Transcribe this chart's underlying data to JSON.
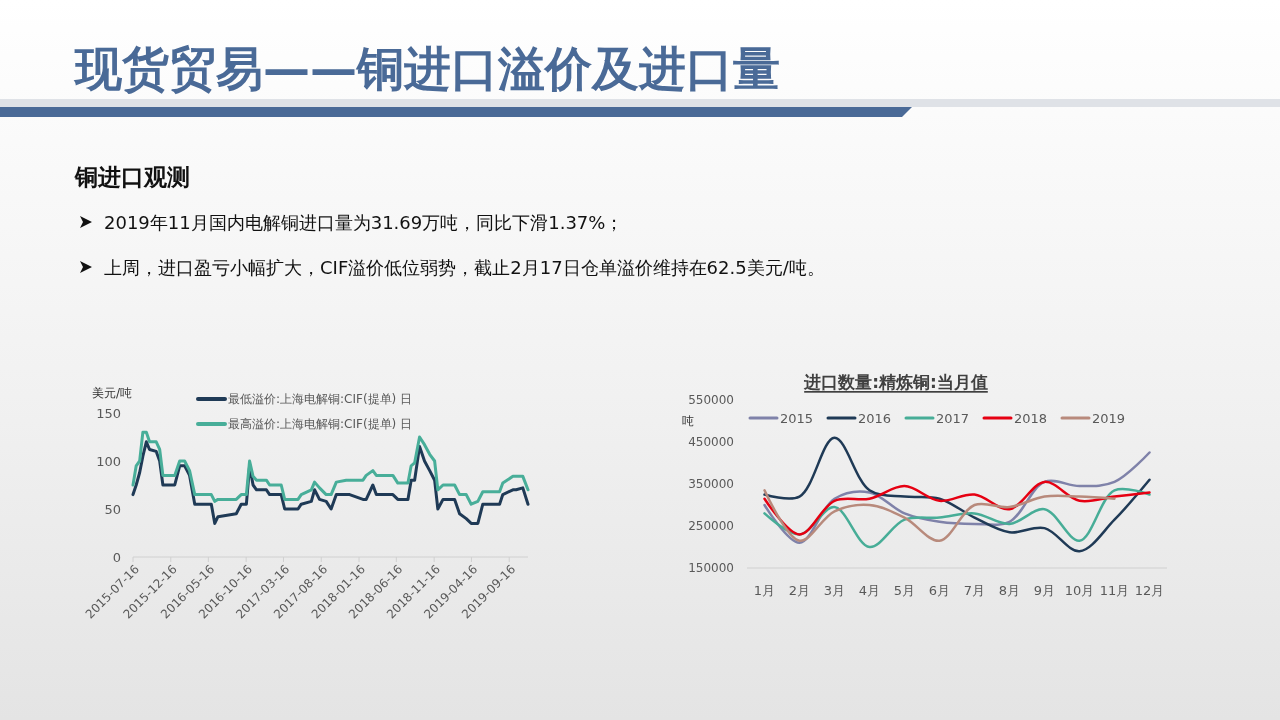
{
  "chart_data": [
    {
      "type": "other",
      "title": "现货贸易——铜进口溢价及进口量",
      "subtitle": "铜进口观测",
      "annotations": [
        "2019年11月国内电解铜进口量为31.69万吨，同比下滑1.37%；",
        "上周，进口盈亏小幅扩大，CIF溢价低位弱势，截止2月17日仓单溢价维持在62.5美元/吨。"
      ]
    },
    {
      "type": "line",
      "ylabel": "美元/吨",
      "legend": "top",
      "x": [
        "2015-07-16",
        "2015-07-29",
        "2015-08-12",
        "2015-08-25",
        "2015-09-08",
        "2015-09-21",
        "2015-10-18",
        "2015-11-01",
        "2015-11-14",
        "2016-01-01",
        "2016-01-21",
        "2016-02-10",
        "2016-03-01",
        "2016-03-22",
        "2016-05-28",
        "2016-06-11",
        "2016-06-24",
        "2016-09-06",
        "2016-09-26",
        "2016-10-17",
        "2016-10-30",
        "2016-11-13",
        "2016-11-27",
        "2017-01-06",
        "2017-01-19",
        "2017-03-07",
        "2017-03-21",
        "2017-05-14",
        "2017-05-27",
        "2017-07-07",
        "2017-07-20",
        "2017-08-09",
        "2017-09-05",
        "2017-09-25",
        "2017-10-16",
        "2017-11-25",
        "2017-12-09",
        "2018-02-01",
        "2018-02-14",
        "2018-03-13",
        "2018-03-27",
        "2018-06-02",
        "2018-06-22",
        "2018-08-02",
        "2018-08-15",
        "2018-08-29",
        "2018-09-18",
        "2018-10-08",
        "2018-10-29",
        "2018-11-18",
        "2018-12-01",
        "2018-12-22",
        "2019-02-07",
        "2019-02-27",
        "2019-03-26",
        "2019-04-15",
        "2019-05-12",
        "2019-06-01",
        "2019-08-08",
        "2019-08-21",
        "2019-10-01",
        "2019-10-14",
        "2019-11-10",
        "2019-12-01"
      ],
      "xlim": [
        "2015-07-16",
        "2019-12-01"
      ],
      "xticks": [
        "2015-07-16",
        "2015-12-16",
        "2016-05-16",
        "2016-10-16",
        "2017-03-16",
        "2017-08-16",
        "2018-01-16",
        "2018-06-16",
        "2018-11-16",
        "2019-04-16",
        "2019-09-16"
      ],
      "ylim": [
        0,
        150
      ],
      "yticks": [
        0,
        50,
        100,
        150
      ],
      "series": [
        {
          "name": "最低溢价:上海电解铜:CIF(提单) 日",
          "color": "#1f3a56",
          "values": [
            65,
            75,
            88,
            105,
            120,
            112,
            110,
            100,
            75,
            75,
            95,
            95,
            85,
            55,
            55,
            35,
            42,
            45,
            55,
            55,
            95,
            75,
            70,
            70,
            65,
            65,
            50,
            50,
            55,
            58,
            70,
            60,
            58,
            50,
            65,
            65,
            65,
            60,
            60,
            75,
            65,
            65,
            60,
            60,
            80,
            80,
            115,
            100,
            90,
            80,
            50,
            60,
            60,
            45,
            40,
            35,
            35,
            55,
            55,
            65,
            70,
            70,
            72,
            55
          ]
        },
        {
          "name": "最高溢价:上海电解铜:CIF(提单) 日",
          "color": "#48ae99",
          "values": [
            75,
            95,
            100,
            130,
            130,
            120,
            120,
            112,
            85,
            85,
            100,
            100,
            90,
            65,
            65,
            58,
            60,
            60,
            65,
            65,
            100,
            84,
            80,
            80,
            75,
            75,
            60,
            60,
            65,
            70,
            78,
            72,
            65,
            65,
            78,
            80,
            80,
            80,
            85,
            90,
            85,
            85,
            77,
            77,
            95,
            98,
            125,
            117,
            107,
            100,
            70,
            75,
            75,
            65,
            65,
            55,
            58,
            68,
            68,
            77,
            84,
            84,
            84,
            70
          ]
        }
      ]
    },
    {
      "type": "line",
      "title": "进口数量:精炼铜:当月值",
      "ylabel": "吨",
      "legend": "top",
      "categories": [
        "1月",
        "2月",
        "3月",
        "4月",
        "5月",
        "6月",
        "7月",
        "8月",
        "9月",
        "10月",
        "11月",
        "12月"
      ],
      "ylim": [
        150000,
        550000
      ],
      "yticks": [
        150000,
        250000,
        350000,
        450000,
        550000
      ],
      "series": [
        {
          "name": "2015",
          "color": "#7f82a9",
          "values": [
            300000,
            210000,
            315000,
            330000,
            280000,
            260000,
            255000,
            260000,
            355000,
            345000,
            355000,
            425000
          ]
        },
        {
          "name": "2016",
          "color": "#1f3a56",
          "values": [
            325000,
            320000,
            460000,
            335000,
            320000,
            315000,
            270000,
            235000,
            245000,
            190000,
            265000,
            360000
          ]
        },
        {
          "name": "2017",
          "color": "#47ad97",
          "values": [
            280000,
            230000,
            295000,
            200000,
            265000,
            270000,
            280000,
            255000,
            290000,
            215000,
            335000,
            325000
          ]
        },
        {
          "name": "2018",
          "color": "#e60012",
          "values": [
            315000,
            230000,
            310000,
            315000,
            345000,
            310000,
            325000,
            290000,
            355000,
            310000,
            320000,
            330000
          ]
        },
        {
          "name": "2019",
          "color": "#b88a7c",
          "values": [
            335000,
            215000,
            285000,
            300000,
            270000,
            215000,
            300000,
            295000,
            320000,
            320000,
            315000,
            null
          ]
        }
      ]
    }
  ]
}
